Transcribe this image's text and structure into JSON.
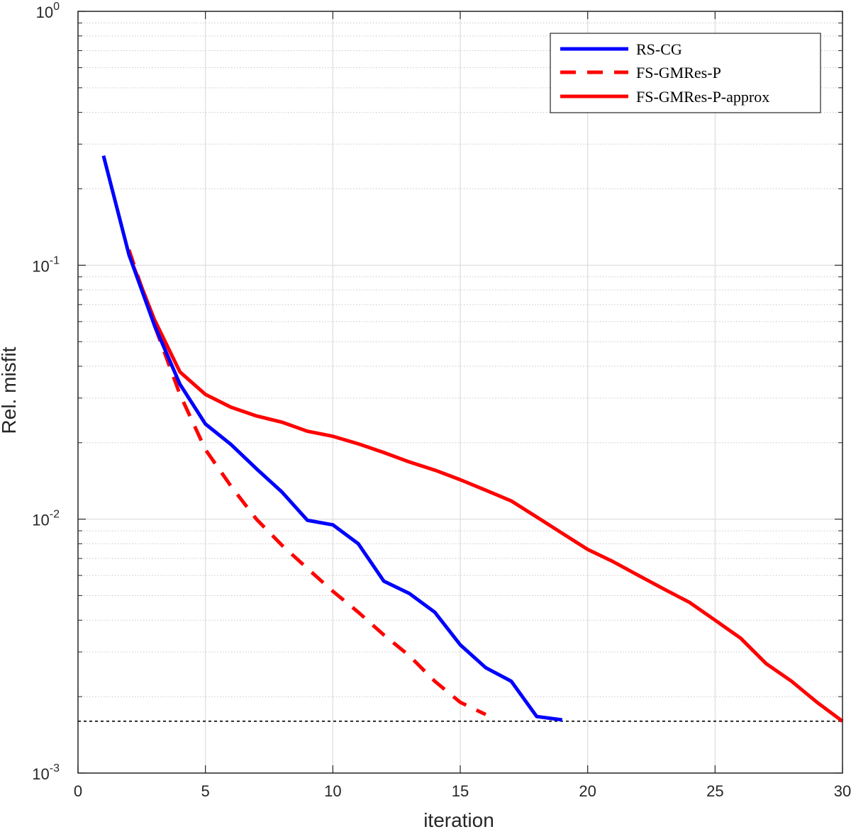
{
  "chart_data": {
    "type": "line",
    "title": "",
    "xlabel": "iteration",
    "ylabel": "Rel. misfit",
    "xlim": [
      0,
      30
    ],
    "ylim": [
      0.001,
      1
    ],
    "yscale": "log",
    "grid": true,
    "minor_grid": true,
    "legend_position": "top-right",
    "xticks": [
      0,
      5,
      10,
      15,
      20,
      25,
      30
    ],
    "xtick_labels": [
      "0",
      "5",
      "10",
      "15",
      "20",
      "25",
      "30"
    ],
    "yticks": [
      {
        "value": 0.001,
        "base": "10",
        "exp": "-3"
      },
      {
        "value": 0.01,
        "base": "10",
        "exp": "-2"
      },
      {
        "value": 0.1,
        "base": "10",
        "exp": "-1"
      },
      {
        "value": 1,
        "base": "10",
        "exp": "0"
      }
    ],
    "series": [
      {
        "name": "RS-CG",
        "color": "#0000ff",
        "style": "solid",
        "x": [
          1,
          2,
          3,
          4,
          5,
          6,
          7,
          8,
          9,
          10,
          11,
          12,
          13,
          14,
          15,
          16,
          17,
          18,
          19
        ],
        "y": [
          0.27,
          0.11,
          0.058,
          0.034,
          0.0237,
          0.0197,
          0.0158,
          0.0128,
          0.0099,
          0.0095,
          0.008,
          0.0057,
          0.0051,
          0.0043,
          0.0032,
          0.0026,
          0.0023,
          0.00167,
          0.00162
        ]
      },
      {
        "name": "FS-GMRes-P",
        "color": "#ff0000",
        "style": "dashed",
        "x": [
          2,
          3,
          4,
          5,
          6,
          7,
          8,
          9,
          10,
          11,
          12,
          13,
          14,
          15,
          16
        ],
        "y": [
          0.115,
          0.058,
          0.031,
          0.0188,
          0.0135,
          0.01,
          0.0079,
          0.0064,
          0.0052,
          0.0043,
          0.0035,
          0.0029,
          0.0023,
          0.0019,
          0.0017
        ]
      },
      {
        "name": "FS-GMRes-P-approx",
        "color": "#ff0000",
        "style": "solid",
        "x": [
          2,
          3,
          4,
          5,
          6,
          7,
          8,
          9,
          10,
          11,
          12,
          13,
          14,
          15,
          16,
          17,
          18,
          19,
          20,
          21,
          22,
          23,
          24,
          25,
          26,
          27,
          28,
          29,
          30
        ],
        "y": [
          0.11,
          0.061,
          0.038,
          0.031,
          0.0276,
          0.0255,
          0.0241,
          0.0222,
          0.0212,
          0.0198,
          0.0183,
          0.0168,
          0.0156,
          0.0143,
          0.013,
          0.0118,
          0.0102,
          0.0088,
          0.0076,
          0.0068,
          0.006,
          0.0053,
          0.0047,
          0.004,
          0.0034,
          0.0027,
          0.0023,
          0.0019,
          0.0016
        ]
      }
    ],
    "reference_line": {
      "y": 0.0016,
      "color": "#000000",
      "style": "dotted"
    }
  }
}
